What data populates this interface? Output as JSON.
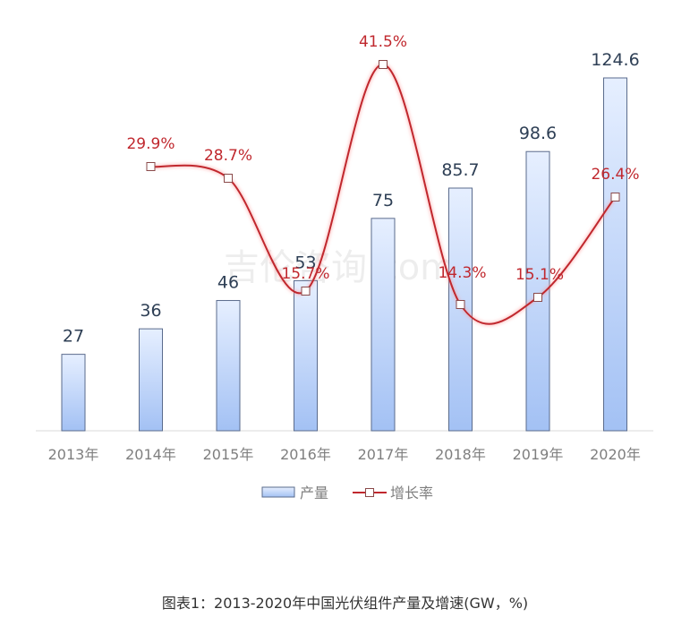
{
  "chart_data": {
    "type": "bar+line",
    "title": "",
    "caption": "图表1：2013-2020年中国光伏组件产量及增速(GW，%)",
    "categories": [
      "2013年",
      "2014年",
      "2015年",
      "2016年",
      "2017年",
      "2018年",
      "2019年",
      "2020年"
    ],
    "series": [
      {
        "name": "产量",
        "type": "bar",
        "unit": "GW",
        "values": [
          27,
          36,
          46,
          53,
          75,
          85.7,
          98.6,
          124.6
        ],
        "labels": [
          "27",
          "36",
          "46",
          "53",
          "75",
          "85.7",
          "98.6",
          "124.6"
        ]
      },
      {
        "name": "增长率",
        "type": "line",
        "unit": "%",
        "values": [
          null,
          29.9,
          28.7,
          15.7,
          41.5,
          14.3,
          15.1,
          26.4
        ],
        "labels": [
          "",
          "29.9%",
          "28.7%",
          "15.7%",
          "41.5%",
          "14.3%",
          "15.1%",
          "26.4%"
        ]
      }
    ],
    "legend": {
      "position": "bottom",
      "items": [
        "产量",
        "增长率"
      ]
    },
    "grid": false,
    "xlabel": "",
    "ylabel": "",
    "watermark": "吉伦咨询.com",
    "colors": {
      "bar_top": "#e6efff",
      "bar_bottom": "#a3c1f4",
      "bar_border": "#5a6b8c",
      "line": "#c0282e",
      "line_label": "#c0282e",
      "bar_label": "#2e3f55",
      "axis_label": "#7f7f7f",
      "axis_line": "#d9d9d9"
    }
  }
}
